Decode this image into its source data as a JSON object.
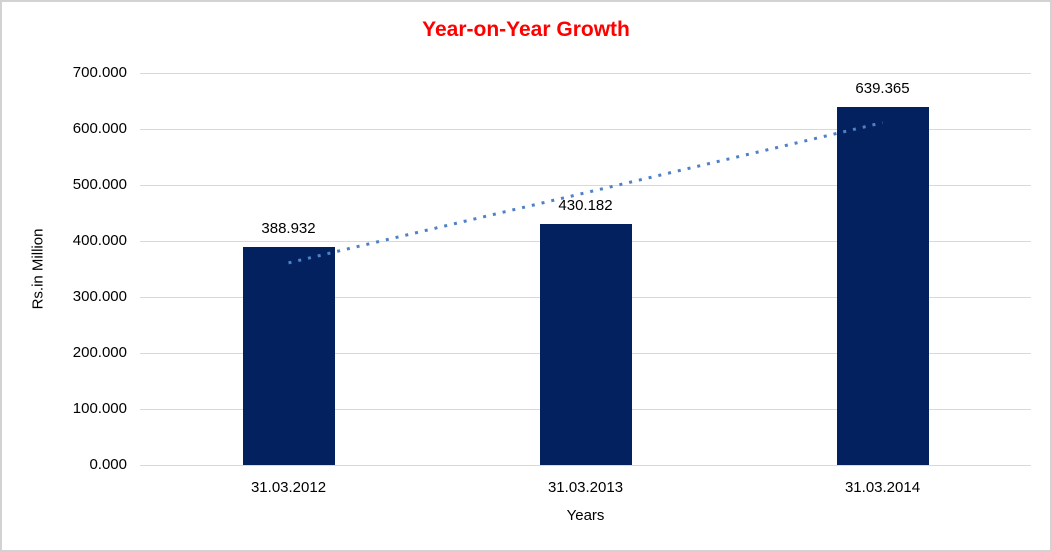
{
  "chart_data": {
    "type": "bar",
    "title": "Year-on-Year Growth",
    "xlabel": "Years",
    "ylabel": "Rs.in Million",
    "categories": [
      "31.03.2012",
      "31.03.2013",
      "31.03.2014"
    ],
    "values": [
      388.932,
      430.182,
      639.365
    ],
    "data_labels": [
      "388.932",
      "430.182",
      "639.365"
    ],
    "ylim": [
      0,
      700
    ],
    "ytick_step": 100,
    "ytick_labels": [
      "0.000",
      "100.000",
      "200.000",
      "300.000",
      "400.000",
      "500.000",
      "600.000",
      "700.000"
    ],
    "grid": true,
    "legend": "none",
    "trendline": {
      "kind": "linear",
      "style": "dotted"
    }
  },
  "colors": {
    "title": "#ff0000",
    "bar": "#03215f",
    "trendline": "#4e81c6",
    "gridline": "#d9d9d9",
    "border": "#d2d2d2",
    "text": "#000000"
  }
}
